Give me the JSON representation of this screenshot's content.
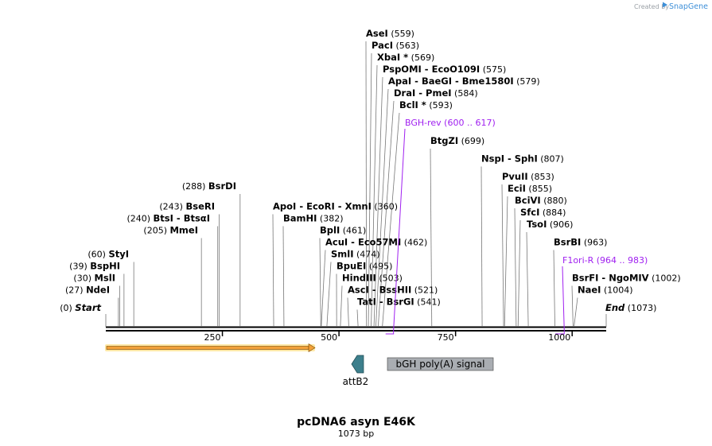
{
  "credit": {
    "prefix": "Created by",
    "brand": "SnapGene"
  },
  "map": {
    "title": "pcDNA6 asyn E46K",
    "length_label": "1073 bp",
    "length_bp": 1073,
    "start": {
      "name": "Start",
      "pos": "(0)"
    },
    "end": {
      "name": "End",
      "pos": "(1073)"
    }
  },
  "ticks": [
    {
      "value": 250,
      "label": "250"
    },
    {
      "value": 500,
      "label": "500"
    },
    {
      "value": 750,
      "label": "750"
    },
    {
      "value": 1000,
      "label": "1000"
    }
  ],
  "left_sites": [
    {
      "name": "NdeI",
      "pos": "(27)",
      "bp": 27
    },
    {
      "name": "MslI",
      "pos": "(30)",
      "bp": 30
    },
    {
      "name": "BspHI",
      "pos": "(39)",
      "bp": 39
    },
    {
      "name": "StyI",
      "pos": "(60)",
      "bp": 60
    },
    {
      "name": "MmeI",
      "pos": "(205)",
      "bp": 205
    },
    {
      "name": "BtsI  - BtsαI",
      "pos": "(240)",
      "bp": 240
    },
    {
      "name": "BseRI",
      "pos": "(243)",
      "bp": 243
    },
    {
      "name": "BsrDI",
      "pos": "(288)",
      "bp": 288
    }
  ],
  "right_sites": [
    {
      "name": "ApoI  - EcoRI  - XmnI",
      "pos": "(360)",
      "bp": 360
    },
    {
      "name": "BamHI",
      "pos": "(382)",
      "bp": 382
    },
    {
      "name": "BplI",
      "pos": "(461)",
      "bp": 461
    },
    {
      "name": "AcuI  - Eco57MI",
      "pos": "(462)",
      "bp": 462
    },
    {
      "name": "SmlI",
      "pos": "(474)",
      "bp": 474
    },
    {
      "name": "BpuEI",
      "pos": "(495)",
      "bp": 495
    },
    {
      "name": "HindIII",
      "pos": "(503)",
      "bp": 503
    },
    {
      "name": "AscI  - BssHII",
      "pos": "(521)",
      "bp": 521
    },
    {
      "name": "TatI  - BsrGI",
      "pos": "(541)",
      "bp": 541
    },
    {
      "name": "AseI",
      "pos": "(559)",
      "bp": 559
    },
    {
      "name": "PacI",
      "pos": "(563)",
      "bp": 563
    },
    {
      "name": "XbaI *",
      "pos": "(569)",
      "bp": 569
    },
    {
      "name": "PspOMI  - EcoO109I",
      "pos": "(575)",
      "bp": 575
    },
    {
      "name": "ApaI  - BaeGI  - Bme1580I",
      "pos": "(579)",
      "bp": 579
    },
    {
      "name": "DraI  - PmeI",
      "pos": "(584)",
      "bp": 584
    },
    {
      "name": "BclI *",
      "pos": "(593)",
      "bp": 593
    },
    {
      "name": "BtgZI",
      "pos": "(699)",
      "bp": 699
    },
    {
      "name": "NspI  - SphI",
      "pos": "(807)",
      "bp": 807
    },
    {
      "name": "PvuII",
      "pos": "(853)",
      "bp": 853
    },
    {
      "name": "EciI",
      "pos": "(855)",
      "bp": 855
    },
    {
      "name": "BciVI",
      "pos": "(880)",
      "bp": 880
    },
    {
      "name": "SfcI",
      "pos": "(884)",
      "bp": 884
    },
    {
      "name": "TsoI",
      "pos": "(906)",
      "bp": 906
    },
    {
      "name": "BsrBI",
      "pos": "(963)",
      "bp": 963
    },
    {
      "name": "BsrFI  - NgoMIV",
      "pos": "(1002)",
      "bp": 1002
    },
    {
      "name": "NaeI",
      "pos": "(1004)",
      "bp": 1004
    }
  ],
  "primers": [
    {
      "name": "BGH-rev",
      "pos": "(600 .. 617)",
      "start_bp": 600,
      "end_bp": 617
    },
    {
      "name": "F1ori-R",
      "pos": "(964 .. 983)",
      "start_bp": 964,
      "end_bp": 983
    }
  ],
  "features": [
    {
      "name": "attB2",
      "type": "arrow-left"
    },
    {
      "name": "bGH poly(A) signal",
      "type": "box"
    }
  ],
  "colors": {
    "primer": "#a020f0",
    "orf_fill": "#f2a13a",
    "orf_glow": "#ffe9a8",
    "orf_stroke": "#7a4a00",
    "attb2": "#3d7f8c",
    "polya_box": "#a9adb2"
  }
}
